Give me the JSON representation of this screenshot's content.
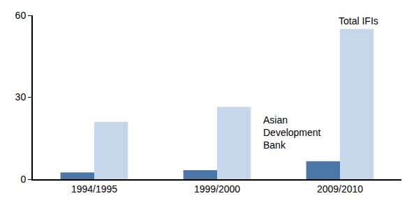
{
  "chart_data": {
    "type": "bar",
    "categories": [
      "1994/1995",
      "1999/2000",
      "2009/2010"
    ],
    "series": [
      {
        "name": "Asian Development Bank",
        "color": "#4a76a8",
        "values": [
          2.5,
          3.3,
          6.6
        ]
      },
      {
        "name": "Total IFIs",
        "color": "#c6d7ec",
        "values": [
          21,
          26.5,
          55
        ]
      }
    ],
    "ylim": [
      0,
      60
    ],
    "yticks": [
      0,
      30,
      60
    ],
    "grid": false
  }
}
